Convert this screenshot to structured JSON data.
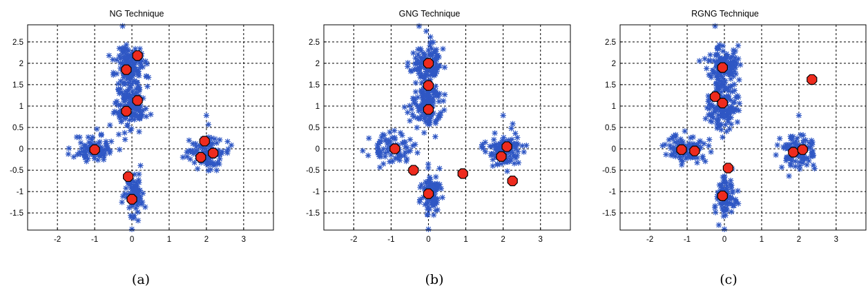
{
  "colors": {
    "points": "#2f57c4",
    "centers_fill": "#ee2b1e",
    "centers_stroke": "#000000",
    "grid": "#000000",
    "frame": "#000000"
  },
  "clusters": [
    {
      "cx": -1.0,
      "cy": 0.0,
      "sx": 0.28,
      "sy": 0.17,
      "n": 80
    },
    {
      "cx": -0.05,
      "cy": 1.95,
      "sx": 0.2,
      "sy": 0.26,
      "n": 130
    },
    {
      "cx": -0.05,
      "cy": 1.0,
      "sx": 0.2,
      "sy": 0.26,
      "n": 130
    },
    {
      "cx": 0.05,
      "cy": -1.05,
      "sx": 0.14,
      "sy": 0.25,
      "n": 80
    },
    {
      "cx": 2.0,
      "cy": -0.05,
      "sx": 0.24,
      "sy": 0.2,
      "n": 110
    }
  ],
  "chart_data": [
    {
      "type": "scatter",
      "title": "NG Technique",
      "caption": "(a)",
      "xlim": [
        -2.8,
        3.8
      ],
      "ylim": [
        -1.9,
        2.9
      ],
      "xticks": [
        -2,
        -1,
        0,
        1,
        2,
        3
      ],
      "yticks": [
        -1.5,
        -1,
        -0.5,
        0,
        0.5,
        1,
        1.5,
        2,
        2.5
      ],
      "xtick_labels": [
        "-2",
        "-1",
        "0",
        "1",
        "2",
        "3"
      ],
      "ytick_labels": [
        "-1.5",
        "-1",
        "-0.5",
        "0",
        "0.5",
        "1",
        "1.5",
        "2",
        "2.5"
      ],
      "grid": true,
      "centers": [
        {
          "x": 0.15,
          "y": 2.18
        },
        {
          "x": -0.15,
          "y": 1.85
        },
        {
          "x": 0.15,
          "y": 1.13
        },
        {
          "x": -0.15,
          "y": 0.88
        },
        {
          "x": -1.0,
          "y": -0.02
        },
        {
          "x": -0.1,
          "y": -0.65
        },
        {
          "x": 0.0,
          "y": -1.18
        },
        {
          "x": 1.95,
          "y": 0.18
        },
        {
          "x": 2.18,
          "y": -0.1
        },
        {
          "x": 1.85,
          "y": -0.2
        }
      ],
      "outliers": [
        {
          "x": -0.25,
          "y": 2.87
        },
        {
          "x": 0.0,
          "y": -1.88
        },
        {
          "x": 2.0,
          "y": 0.78
        }
      ]
    },
    {
      "type": "scatter",
      "title": "GNG Technique",
      "caption": "(b)",
      "xlim": [
        -2.8,
        3.8
      ],
      "ylim": [
        -1.9,
        2.9
      ],
      "xticks": [
        -2,
        -1,
        0,
        1,
        2,
        3
      ],
      "yticks": [
        -1.5,
        -1,
        -0.5,
        0,
        0.5,
        1,
        1.5,
        2,
        2.5
      ],
      "xtick_labels": [
        "-2",
        "-1",
        "0",
        "1",
        "2",
        "3"
      ],
      "ytick_labels": [
        "-1.5",
        "-1",
        "-0.5",
        "0",
        "0.5",
        "1",
        "1.5",
        "2",
        "2.5"
      ],
      "grid": true,
      "centers": [
        {
          "x": 0.0,
          "y": 2.0
        },
        {
          "x": 0.0,
          "y": 1.48
        },
        {
          "x": 0.0,
          "y": 0.92
        },
        {
          "x": -0.9,
          "y": 0.0
        },
        {
          "x": -0.4,
          "y": -0.5
        },
        {
          "x": 0.0,
          "y": -1.05
        },
        {
          "x": 0.92,
          "y": -0.58
        },
        {
          "x": 2.1,
          "y": 0.05
        },
        {
          "x": 1.95,
          "y": -0.18
        },
        {
          "x": 2.25,
          "y": -0.75
        }
      ],
      "outliers": [
        {
          "x": -0.25,
          "y": 2.87
        },
        {
          "x": 0.0,
          "y": -1.88
        },
        {
          "x": 2.0,
          "y": 0.78
        }
      ]
    },
    {
      "type": "scatter",
      "title": "RGNG Technique",
      "caption": "(c)",
      "xlim": [
        -2.8,
        3.8
      ],
      "ylim": [
        -1.9,
        2.9
      ],
      "xticks": [
        -2,
        -1,
        0,
        1,
        2,
        3
      ],
      "yticks": [
        -1.5,
        -1,
        -0.5,
        0,
        0.5,
        1,
        1.5,
        2,
        2.5
      ],
      "xtick_labels": [
        "-2",
        "-1",
        "0",
        "1",
        "2",
        "3"
      ],
      "ytick_labels": [
        "-1.5",
        "-1",
        "-0.5",
        "0",
        "0.5",
        "1",
        "1.5",
        "2",
        "2.5"
      ],
      "grid": true,
      "centers": [
        {
          "x": -0.05,
          "y": 1.9
        },
        {
          "x": -0.25,
          "y": 1.22
        },
        {
          "x": -0.05,
          "y": 1.07
        },
        {
          "x": 2.35,
          "y": 1.62
        },
        {
          "x": -1.15,
          "y": -0.02
        },
        {
          "x": -0.8,
          "y": -0.05
        },
        {
          "x": 0.1,
          "y": -0.45
        },
        {
          "x": -0.05,
          "y": -1.1
        },
        {
          "x": 1.85,
          "y": -0.08
        },
        {
          "x": 2.1,
          "y": -0.02
        }
      ],
      "outliers": [
        {
          "x": -0.25,
          "y": 2.87
        },
        {
          "x": 0.0,
          "y": -1.88
        },
        {
          "x": 2.0,
          "y": 0.78
        }
      ]
    }
  ]
}
